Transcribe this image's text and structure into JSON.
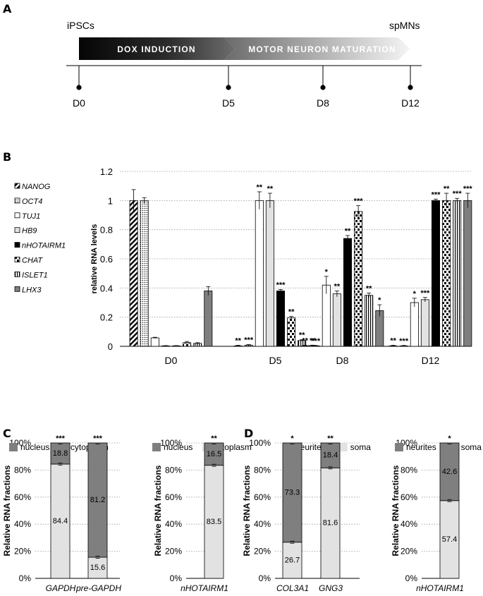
{
  "panel_a": {
    "label": "A",
    "start_label": "iPSCs",
    "end_label": "spMNs",
    "phase1": "DOX INDUCTION",
    "phase2": "MOTOR NEURON MATURATION",
    "timepoints": [
      "D0",
      "D5",
      "D8",
      "D12"
    ]
  },
  "chart_data": [
    {
      "panel": "B",
      "type": "bar",
      "ylabel": "relative RNA levels",
      "ylim": [
        0,
        1.2
      ],
      "yticks": [
        0,
        0.2,
        0.4,
        0.6,
        0.8,
        1,
        1.2
      ],
      "grid": "horizontal dotted",
      "legend_position": "left",
      "categories": [
        "D0",
        "D5",
        "D8",
        "D12"
      ],
      "series": [
        {
          "name": "NANOG",
          "pattern": "diagonal",
          "values": [
            1.0,
            0.003,
            0.003,
            0.003
          ],
          "errors": [
            0.075,
            0.004,
            0.004,
            0.004
          ],
          "stars": [
            "",
            "**",
            "**",
            "**"
          ]
        },
        {
          "name": "OCT4",
          "pattern": "dots",
          "values": [
            1.0,
            0.008,
            0.003,
            0.003
          ],
          "errors": [
            0.02,
            0.004,
            0.003,
            0.003
          ],
          "stars": [
            "",
            "***",
            "***",
            "***"
          ]
        },
        {
          "name": "TUJ1",
          "pattern": "white",
          "values": [
            0.058,
            1.0,
            0.42,
            0.3
          ],
          "errors": [
            0.004,
            0.06,
            0.06,
            0.03
          ],
          "stars": [
            "",
            "**",
            "*",
            "*"
          ]
        },
        {
          "name": "HB9",
          "pattern": "lightgray",
          "values": [
            0.003,
            1.0,
            0.36,
            0.32
          ],
          "errors": [
            0.002,
            0.05,
            0.02,
            0.015
          ],
          "stars": [
            "",
            "**",
            "**",
            "***"
          ]
        },
        {
          "name": "nHOTAIRM1",
          "pattern": "black",
          "values": [
            0.003,
            0.38,
            0.74,
            1.0
          ],
          "errors": [
            0.002,
            0.01,
            0.02,
            0.01
          ],
          "stars": [
            "",
            "***",
            "**",
            "***"
          ]
        },
        {
          "name": "CHAT",
          "pattern": "dashes",
          "values": [
            0.025,
            0.195,
            0.925,
            1.0
          ],
          "errors": [
            0.008,
            0.01,
            0.04,
            0.05
          ],
          "stars": [
            "",
            "**",
            "***",
            "**"
          ]
        },
        {
          "name": "ISLET1",
          "pattern": "vertical",
          "values": [
            0.02,
            0.04,
            0.35,
            1.0
          ],
          "errors": [
            0.005,
            0.005,
            0.015,
            0.015
          ],
          "stars": [
            "",
            "**",
            "**",
            "***"
          ]
        },
        {
          "name": "LHX3",
          "pattern": "darkgray",
          "values": [
            0.38,
            0.005,
            0.245,
            1.0
          ],
          "errors": [
            0.03,
            0.003,
            0.04,
            0.05
          ],
          "stars": [
            "",
            "**",
            "*",
            "***"
          ]
        }
      ]
    },
    {
      "panel": "C",
      "type": "bar",
      "stacked": true,
      "ylabel": "Relative RNA fractions",
      "yticks": [
        "0%",
        "20%",
        "40%",
        "60%",
        "80%",
        "100%"
      ],
      "legend": [
        "nucleus",
        "cytoplasm"
      ],
      "categories": [
        "GAPDH",
        "pre-GAPDH"
      ],
      "series": [
        {
          "name": "cytoplasm",
          "values": [
            84.4,
            15.6
          ]
        },
        {
          "name": "nucleus",
          "values": [
            18.8,
            81.2
          ]
        }
      ],
      "stars": [
        "***",
        "***"
      ]
    },
    {
      "panel": "C",
      "type": "bar",
      "stacked": true,
      "ylabel": "Relative RNA fractions",
      "yticks": [
        "0%",
        "20%",
        "40%",
        "60%",
        "80%",
        "100%"
      ],
      "legend": [
        "nucleus",
        "cytoplasm"
      ],
      "categories": [
        "nHOTAIRM1"
      ],
      "series": [
        {
          "name": "cytoplasm",
          "values": [
            83.5
          ]
        },
        {
          "name": "nucleus",
          "values": [
            16.5
          ]
        }
      ],
      "stars": [
        "**"
      ]
    },
    {
      "panel": "D",
      "type": "bar",
      "stacked": true,
      "ylabel": "Relative RNA fractions",
      "yticks": [
        "0%",
        "20%",
        "40%",
        "60%",
        "80%",
        "100%"
      ],
      "legend": [
        "neurites",
        "soma"
      ],
      "categories": [
        "COL3A1",
        "GNG3"
      ],
      "series": [
        {
          "name": "soma",
          "values": [
            26.7,
            81.6
          ]
        },
        {
          "name": "neurites",
          "values": [
            73.3,
            18.4
          ]
        }
      ],
      "stars": [
        "*",
        "**"
      ]
    },
    {
      "panel": "D",
      "type": "bar",
      "stacked": true,
      "ylabel": "Relative RNA fractions",
      "yticks": [
        "0%",
        "20%",
        "40%",
        "60%",
        "80%",
        "100%"
      ],
      "legend": [
        "neurites",
        "soma"
      ],
      "categories": [
        "nHOTAIRM1"
      ],
      "series": [
        {
          "name": "soma",
          "values": [
            57.4
          ]
        },
        {
          "name": "neurites",
          "values": [
            42.6
          ]
        }
      ],
      "stars": [
        "*"
      ]
    }
  ],
  "panel_labels": {
    "b": "B",
    "c": "C",
    "d": "D"
  },
  "colors": {
    "bar_dark": "#7f7f7f",
    "bar_light": "#e2e2e2",
    "black": "#000000"
  }
}
